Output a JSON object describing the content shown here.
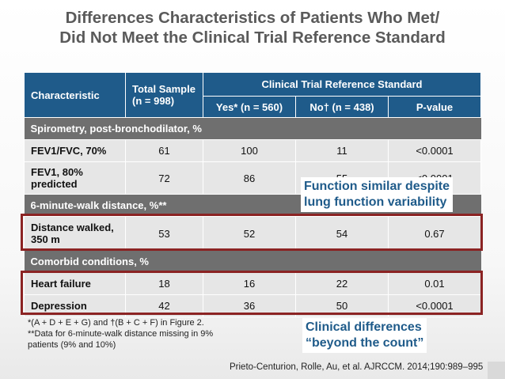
{
  "title": {
    "line1": "Differences Characteristics of Patients Who Met/",
    "line2": "Did Not Meet the Clinical Trial Reference Standard"
  },
  "table": {
    "headers": {
      "characteristic": "Characteristic",
      "total_sample": "Total Sample (n = 998)",
      "group": "Clinical Trial Reference Standard",
      "yes": "Yes* (n = 560)",
      "no": "No† (n = 438)",
      "pvalue": "P-value"
    },
    "section_spirometry": "Spirometry, post-bronchodilator, %",
    "row_fev1fvc": {
      "label": "FEV1/FVC, 70%",
      "total": "61",
      "yes": "100",
      "no": "11",
      "p": "<0.0001"
    },
    "row_fev1": {
      "label": "FEV1, 80% predicted",
      "total": "72",
      "yes": "86",
      "no": "55",
      "p": "<0.0001"
    },
    "section_walk": "6-minute-walk distance, %**",
    "row_distance": {
      "label": "Distance walked, 350 m",
      "total": "53",
      "yes": "52",
      "no": "54",
      "p": "0.67"
    },
    "section_comorbid": "Comorbid conditions, %",
    "row_heart": {
      "label": "Heart failure",
      "total": "18",
      "yes": "16",
      "no": "22",
      "p": "0.01"
    },
    "row_depression": {
      "label": "Depression",
      "total": "42",
      "yes": "36",
      "no": "50",
      "p": "<0.0001"
    }
  },
  "callouts": {
    "function_line1": "Function similar despite",
    "function_line2": "lung function variability",
    "clinical_line1": "Clinical differences",
    "clinical_line2": "“beyond the count”"
  },
  "footnotes": {
    "line1": "*(A + D + E + G) and †(B + C + F) in Figure 2.",
    "line2": "**Data for 6-minute-walk distance missing in 9%",
    "line3": "patients (9% and 10%)"
  },
  "citation": "Prieto-Centurion, Rolle, Au, et al. AJRCCM. 2014;190:989–995",
  "colors": {
    "header_blue": "#1f5b8a",
    "section_gray": "#6f6f6f",
    "row_gray": "#e6e6e6",
    "highlight_red": "#8b2323",
    "title_gray": "#5a5a5a"
  }
}
